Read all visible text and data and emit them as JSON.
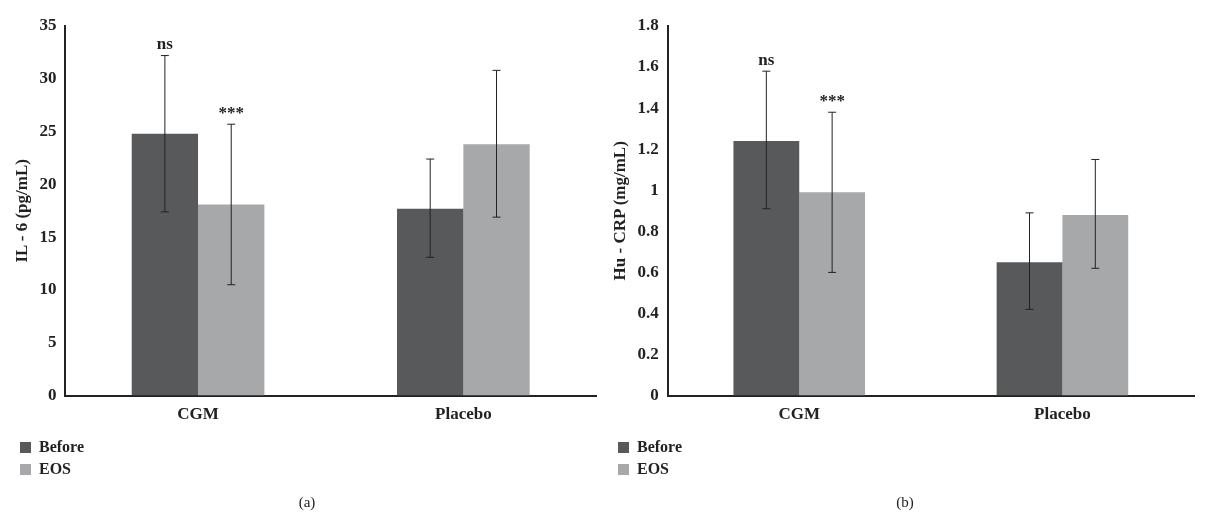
{
  "chart_data": [
    {
      "type": "bar",
      "ylabel": "IL - 6 (pg/mL)",
      "categories": [
        "CGM",
        "Placebo"
      ],
      "ylim": [
        0,
        35
      ],
      "yticks": [
        0,
        5,
        10,
        15,
        20,
        25,
        30,
        35
      ],
      "grid": false,
      "legend": "bottom left",
      "series": [
        {
          "name": "Before",
          "color": "#58595b",
          "values": [
            24.8,
            17.7
          ],
          "errors": [
            [
              17.4,
              32.2
            ],
            [
              13.1,
              22.4
            ]
          ]
        },
        {
          "name": "EOS",
          "color": "#a7a8aa",
          "values": [
            18.1,
            23.8
          ],
          "errors": [
            [
              10.5,
              25.7
            ],
            [
              16.9,
              30.8
            ]
          ]
        }
      ],
      "annotations": [
        "ns",
        "***",
        "(a)"
      ]
    },
    {
      "type": "bar",
      "ylabel": "Hu - CRP (mg/mL)",
      "categories": [
        "CGM",
        "Placebo"
      ],
      "ylim": [
        0,
        1.8
      ],
      "yticks": [
        0,
        0.2,
        0.4,
        0.6,
        0.8,
        1,
        1.2,
        1.4,
        1.6,
        1.8
      ],
      "grid": false,
      "legend": "bottom left",
      "series": [
        {
          "name": "Before",
          "color": "#58595b",
          "values": [
            1.24,
            0.65
          ],
          "errors": [
            [
              0.91,
              1.58
            ],
            [
              0.42,
              0.89
            ]
          ]
        },
        {
          "name": "EOS",
          "color": "#a7a8aa",
          "values": [
            0.99,
            0.88
          ],
          "errors": [
            [
              0.6,
              1.38
            ],
            [
              0.62,
              1.15
            ]
          ]
        }
      ],
      "annotations": [
        "ns",
        "***",
        "(b)"
      ]
    }
  ]
}
